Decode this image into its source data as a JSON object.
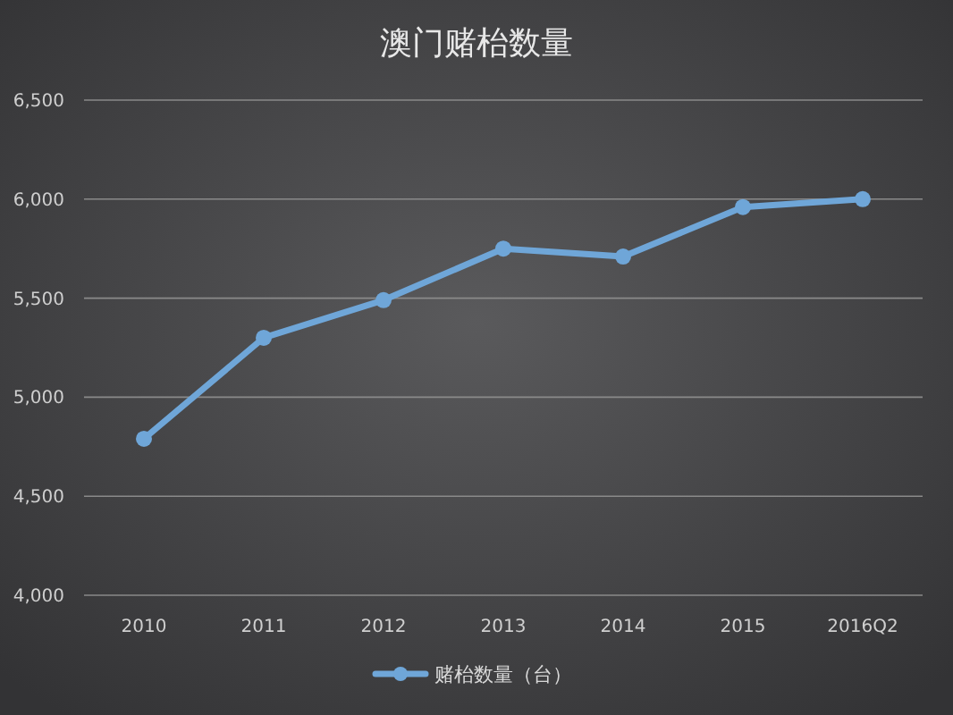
{
  "chart_data": {
    "type": "line",
    "title": "澳门赌枱数量",
    "categories": [
      "2010",
      "2011",
      "2012",
      "2013",
      "2014",
      "2015",
      "2016Q2"
    ],
    "series": [
      {
        "name": "赌枱数量（台）",
        "color": "#6fa6d8",
        "values": [
          4790,
          5300,
          5490,
          5750,
          5710,
          5960,
          6000
        ]
      }
    ],
    "ylim": [
      4000,
      6500
    ],
    "yticks": [
      {
        "value": 4000,
        "label": "4,000"
      },
      {
        "value": 4500,
        "label": "4,500"
      },
      {
        "value": 5000,
        "label": "5,000"
      },
      {
        "value": 5500,
        "label": "5,500"
      },
      {
        "value": 6000,
        "label": "6,000"
      },
      {
        "value": 6500,
        "label": "6,500"
      }
    ],
    "grid": "y",
    "legend": "bottom",
    "marker": "circle",
    "line_style": "solid"
  }
}
